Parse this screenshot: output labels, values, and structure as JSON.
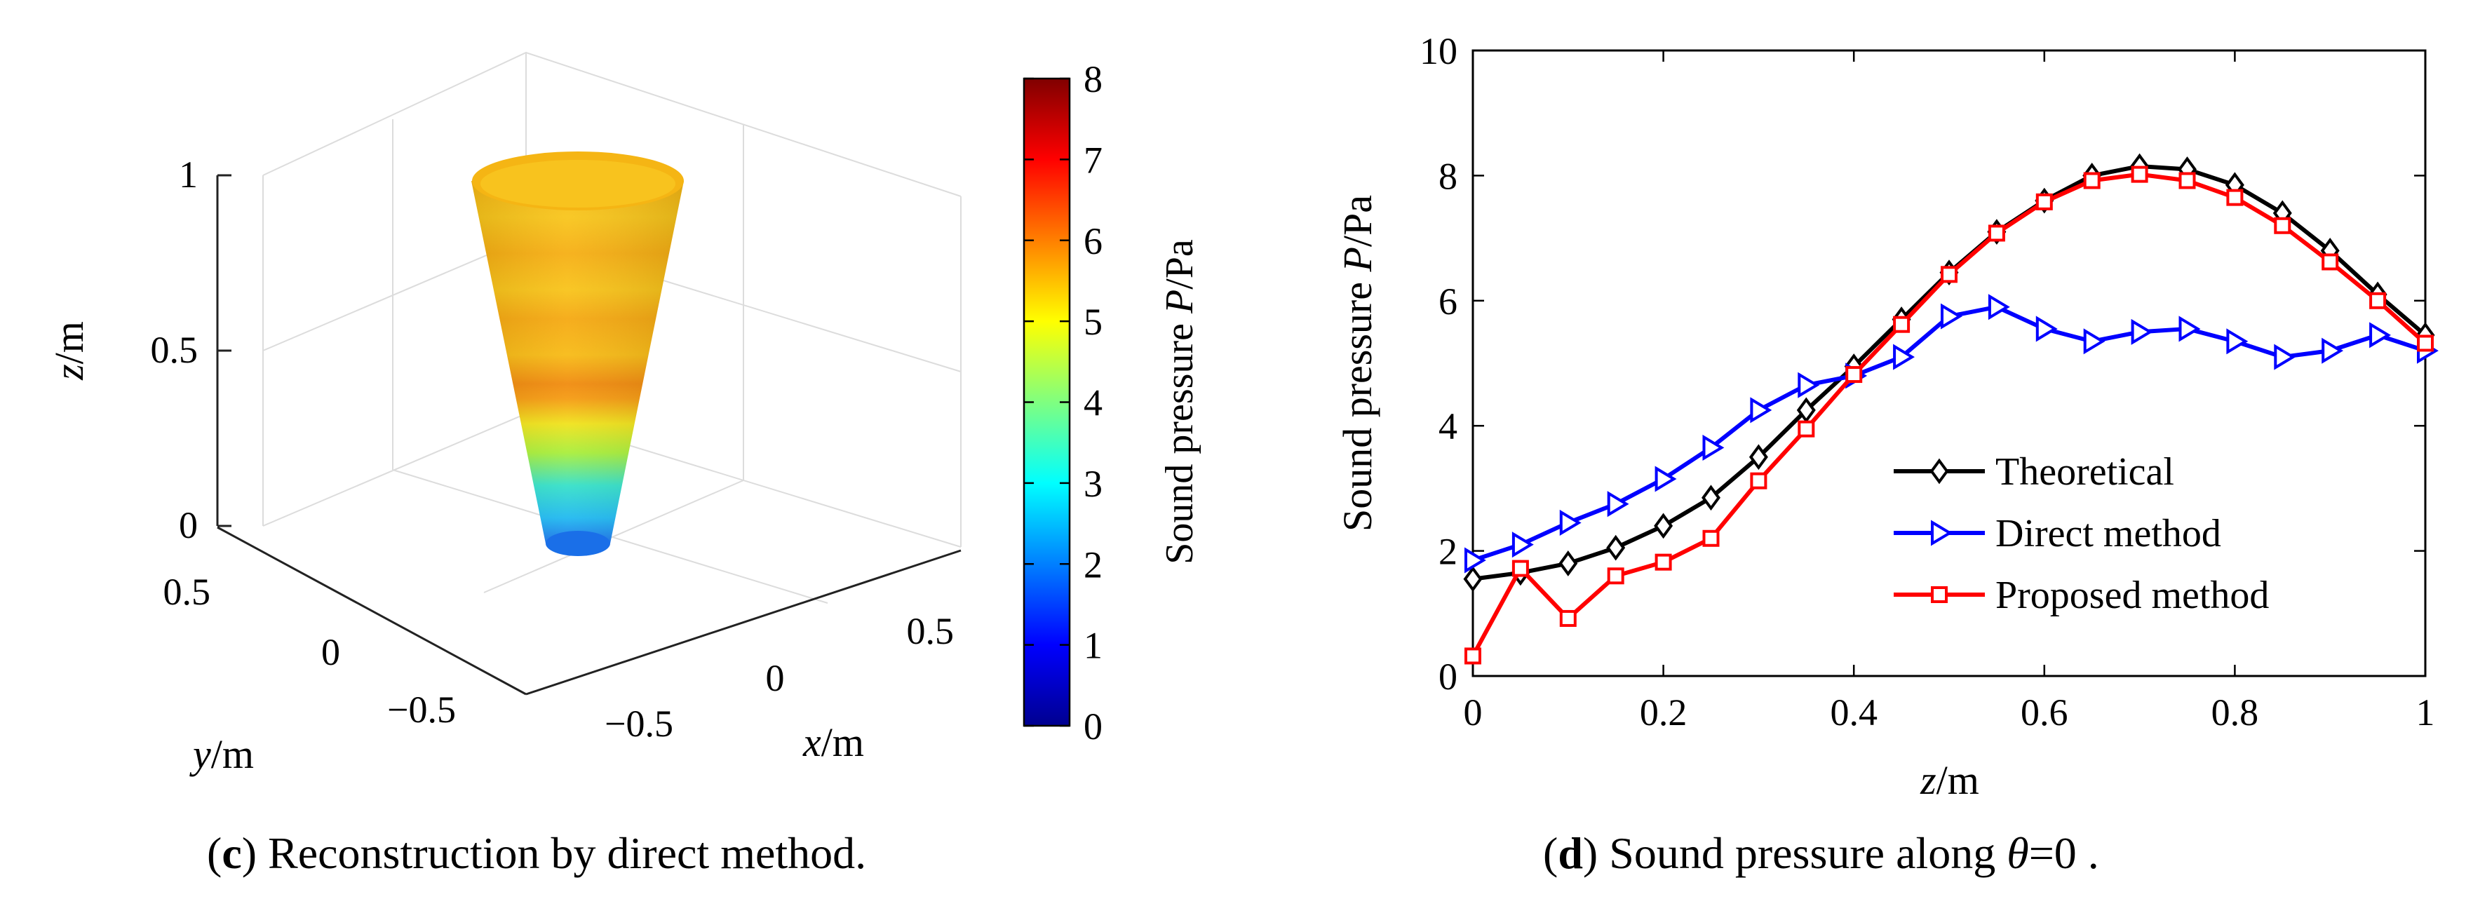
{
  "left_panel": {
    "type": "3d-surface",
    "z_axis": {
      "label": "z",
      "unit": "/m",
      "ticks": [
        "0",
        "0.5",
        "1"
      ]
    },
    "y_axis": {
      "label": "y",
      "unit": "/m",
      "ticks": [
        "0.5",
        "0",
        "−0.5"
      ]
    },
    "x_axis": {
      "label": "x",
      "unit": "/m",
      "ticks": [
        "−0.5",
        "0",
        "0.5"
      ]
    },
    "colorbar": {
      "label_prefix": "Sound pressure ",
      "label_var": "P",
      "label_unit": "/Pa",
      "ticks": [
        "0",
        "1",
        "2",
        "3",
        "4",
        "5",
        "6",
        "7",
        "8"
      ],
      "range": [
        0,
        8
      ],
      "colormap": "jet"
    },
    "caption": {
      "letter": "c",
      "text": " Reconstruction by direct method."
    }
  },
  "chart_data": {
    "type": "line",
    "x": [
      0,
      0.05,
      0.1,
      0.15,
      0.2,
      0.25,
      0.3,
      0.35,
      0.4,
      0.45,
      0.5,
      0.55,
      0.6,
      0.65,
      0.7,
      0.75,
      0.8,
      0.85,
      0.9,
      0.95,
      1.0
    ],
    "series": [
      {
        "name": "Theoretical",
        "color": "#000000",
        "marker": "diamond",
        "values": [
          1.55,
          1.65,
          1.8,
          2.05,
          2.4,
          2.85,
          3.5,
          4.25,
          4.95,
          5.7,
          6.45,
          7.1,
          7.6,
          8.0,
          8.15,
          8.1,
          7.85,
          7.4,
          6.8,
          6.1,
          5.45
        ]
      },
      {
        "name": "Direct method",
        "color": "#0000ff",
        "marker": "triangle-right",
        "values": [
          1.85,
          2.1,
          2.45,
          2.75,
          3.15,
          3.65,
          4.25,
          4.65,
          4.8,
          5.1,
          5.75,
          5.9,
          5.55,
          5.35,
          5.5,
          5.55,
          5.35,
          5.1,
          5.2,
          5.45,
          5.2
        ]
      },
      {
        "name": "Proposed method",
        "color": "#ff0000",
        "marker": "square",
        "values": [
          0.32,
          1.72,
          0.92,
          1.6,
          1.82,
          2.2,
          3.12,
          3.95,
          4.82,
          5.62,
          6.42,
          7.08,
          7.58,
          7.92,
          8.02,
          7.92,
          7.65,
          7.2,
          6.62,
          6.0,
          5.32
        ]
      }
    ],
    "xlabel": {
      "var": "z",
      "unit": "/m"
    },
    "ylabel": {
      "prefix": "Sound pressure ",
      "var": "P",
      "unit": "/Pa"
    },
    "xlim": [
      0,
      1
    ],
    "ylim": [
      0,
      10
    ],
    "xticks": [
      "0",
      "0.2",
      "0.4",
      "0.6",
      "0.8",
      "1"
    ],
    "yticks": [
      "0",
      "2",
      "4",
      "6",
      "8",
      "10"
    ],
    "legend_position": "lower-right",
    "grid": false
  },
  "right_caption": {
    "letter": "d",
    "text_before": " Sound pressure along ",
    "theta": "θ",
    "text_after": "=0 ."
  }
}
